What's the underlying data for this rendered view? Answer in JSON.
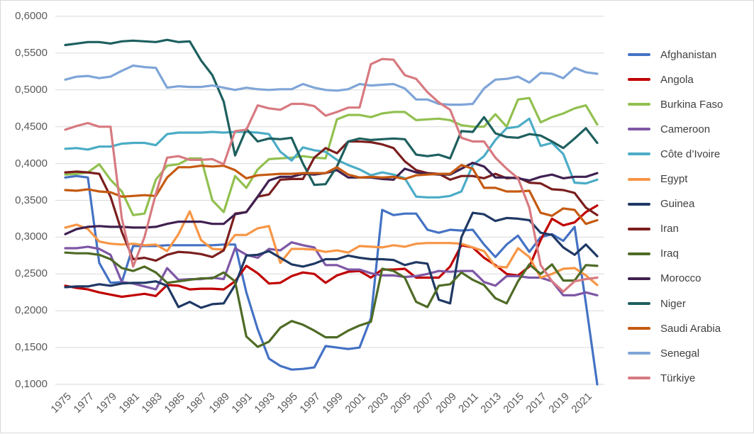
{
  "chart_data": {
    "type": "line",
    "title": "",
    "xlabel": "",
    "ylabel": "",
    "ylim": [
      0.1,
      0.6
    ],
    "yticks": [
      "0,6000",
      "0,5500",
      "0,5000",
      "0,4500",
      "0,4000",
      "0,3500",
      "0,3000",
      "0,2500",
      "0,2000",
      "0,1500",
      "0,1000"
    ],
    "xtick_labels": [
      "1975",
      "1977",
      "1979",
      "1981",
      "1983",
      "1985",
      "1987",
      "1989",
      "1991",
      "1993",
      "1995",
      "1997",
      "1999",
      "2001",
      "2003",
      "2005",
      "2007",
      "2009",
      "2011",
      "2013",
      "2015",
      "2017",
      "2019",
      "2021"
    ],
    "x": [
      1975,
      1976,
      1977,
      1978,
      1979,
      1980,
      1981,
      1982,
      1983,
      1984,
      1985,
      1986,
      1987,
      1988,
      1989,
      1990,
      1991,
      1992,
      1993,
      1994,
      1995,
      1996,
      1997,
      1998,
      1999,
      2000,
      2001,
      2002,
      2003,
      2004,
      2005,
      2006,
      2007,
      2008,
      2009,
      2010,
      2011,
      2012,
      2013,
      2014,
      2015,
      2016,
      2017,
      2018,
      2019,
      2020,
      2021,
      2022
    ],
    "grid": "horizontal",
    "legend_position": "right",
    "series": [
      {
        "name": "Afghanistan",
        "color": "#4472C4",
        "values": [
          0.381,
          0.383,
          0.381,
          0.265,
          0.238,
          0.239,
          0.288,
          0.288,
          0.288,
          0.289,
          0.289,
          0.289,
          0.289,
          0.289,
          0.29,
          0.29,
          0.225,
          0.175,
          0.135,
          0.125,
          0.12,
          0.121,
          0.123,
          0.152,
          0.15,
          0.148,
          0.15,
          0.19,
          0.337,
          0.33,
          0.332,
          0.332,
          0.31,
          0.306,
          0.31,
          0.309,
          0.31,
          0.29,
          0.273,
          0.29,
          0.302,
          0.28,
          0.3,
          0.304,
          0.295,
          0.314,
          0.21,
          0.1
        ]
      },
      {
        "name": "Angola",
        "color": "#C00000",
        "values": [
          0.234,
          0.231,
          0.229,
          0.225,
          0.222,
          0.219,
          0.221,
          0.223,
          0.22,
          0.235,
          0.234,
          0.229,
          0.23,
          0.23,
          0.229,
          0.24,
          0.261,
          0.251,
          0.237,
          0.238,
          0.247,
          0.252,
          0.25,
          0.238,
          0.248,
          0.253,
          0.254,
          0.245,
          0.256,
          0.256,
          0.257,
          0.245,
          0.245,
          0.245,
          0.26,
          0.289,
          0.286,
          0.272,
          0.262,
          0.25,
          0.248,
          0.26,
          0.296,
          0.325,
          0.316,
          0.32,
          0.334,
          0.343
        ]
      },
      {
        "name": "Burkina Faso",
        "color": "#92C050",
        "values": [
          0.385,
          0.386,
          0.388,
          0.399,
          0.378,
          0.362,
          0.33,
          0.332,
          0.378,
          0.397,
          0.399,
          0.407,
          0.407,
          0.35,
          0.334,
          0.383,
          0.367,
          0.392,
          0.406,
          0.407,
          0.408,
          0.41,
          0.408,
          0.407,
          0.46,
          0.466,
          0.466,
          0.463,
          0.468,
          0.47,
          0.47,
          0.459,
          0.46,
          0.461,
          0.459,
          0.452,
          0.45,
          0.45,
          0.467,
          0.45,
          0.487,
          0.489,
          0.456,
          0.463,
          0.468,
          0.475,
          0.479,
          0.453
        ]
      },
      {
        "name": "Cameroon",
        "color": "#7E57A5",
        "values": [
          0.285,
          0.285,
          0.287,
          0.284,
          0.276,
          0.239,
          0.237,
          0.233,
          0.229,
          0.258,
          0.242,
          0.243,
          0.243,
          0.245,
          0.243,
          0.285,
          0.276,
          0.272,
          0.284,
          0.282,
          0.293,
          0.289,
          0.286,
          0.262,
          0.262,
          0.256,
          0.256,
          0.251,
          0.248,
          0.248,
          0.246,
          0.247,
          0.25,
          0.254,
          0.253,
          0.254,
          0.254,
          0.239,
          0.234,
          0.247,
          0.247,
          0.245,
          0.245,
          0.24,
          0.221,
          0.221,
          0.225,
          0.221
        ]
      },
      {
        "name": "Côte d’Ivoire",
        "color": "#4BACC6",
        "values": [
          0.42,
          0.421,
          0.419,
          0.423,
          0.423,
          0.427,
          0.428,
          0.428,
          0.425,
          0.44,
          0.442,
          0.442,
          0.442,
          0.443,
          0.442,
          0.443,
          0.443,
          0.442,
          0.44,
          0.416,
          0.404,
          0.422,
          0.418,
          0.416,
          0.405,
          0.398,
          0.392,
          0.384,
          0.388,
          0.385,
          0.38,
          0.355,
          0.354,
          0.354,
          0.356,
          0.362,
          0.398,
          0.41,
          0.432,
          0.448,
          0.45,
          0.461,
          0.424,
          0.428,
          0.413,
          0.374,
          0.373,
          0.378
        ]
      },
      {
        "name": "Egypt",
        "color": "#F79646",
        "values": [
          0.313,
          0.317,
          0.311,
          0.294,
          0.291,
          0.29,
          0.291,
          0.289,
          0.29,
          0.281,
          0.304,
          0.335,
          0.296,
          0.284,
          0.283,
          0.303,
          0.303,
          0.312,
          0.315,
          0.265,
          0.284,
          0.284,
          0.283,
          0.28,
          0.282,
          0.279,
          0.288,
          0.287,
          0.286,
          0.289,
          0.287,
          0.291,
          0.292,
          0.292,
          0.292,
          0.291,
          0.286,
          0.281,
          0.26,
          0.259,
          0.285,
          0.273,
          0.245,
          0.25,
          0.257,
          0.258,
          0.248,
          0.235
        ]
      },
      {
        "name": "Guinea",
        "color": "#1F3864",
        "values": [
          0.232,
          0.233,
          0.233,
          0.236,
          0.234,
          0.237,
          0.238,
          0.238,
          0.24,
          0.234,
          0.205,
          0.212,
          0.204,
          0.209,
          0.21,
          0.235,
          0.275,
          0.276,
          0.281,
          0.272,
          0.263,
          0.26,
          0.264,
          0.27,
          0.27,
          0.275,
          0.272,
          0.27,
          0.27,
          0.269,
          0.262,
          0.266,
          0.264,
          0.215,
          0.21,
          0.3,
          0.333,
          0.331,
          0.322,
          0.326,
          0.325,
          0.323,
          0.306,
          0.303,
          0.286,
          0.276,
          0.29,
          0.274
        ]
      },
      {
        "name": "Iran",
        "color": "#7B1E1E",
        "values": [
          0.388,
          0.389,
          0.388,
          0.386,
          0.355,
          0.307,
          0.27,
          0.272,
          0.268,
          0.276,
          0.28,
          0.279,
          0.277,
          0.273,
          0.282,
          0.332,
          0.334,
          0.355,
          0.358,
          0.378,
          0.379,
          0.379,
          0.408,
          0.421,
          0.414,
          0.43,
          0.43,
          0.429,
          0.426,
          0.421,
          0.403,
          0.391,
          0.387,
          0.386,
          0.378,
          0.383,
          0.383,
          0.38,
          0.386,
          0.38,
          0.381,
          0.374,
          0.373,
          0.365,
          0.364,
          0.36,
          0.34,
          0.33
        ]
      },
      {
        "name": "Iraq",
        "color": "#4E6B25",
        "values": [
          0.279,
          0.278,
          0.278,
          0.276,
          0.27,
          0.258,
          0.254,
          0.26,
          0.252,
          0.238,
          0.24,
          0.242,
          0.244,
          0.244,
          0.252,
          0.24,
          0.165,
          0.151,
          0.158,
          0.177,
          0.186,
          0.181,
          0.173,
          0.164,
          0.164,
          0.173,
          0.18,
          0.185,
          0.257,
          0.254,
          0.245,
          0.212,
          0.205,
          0.234,
          0.236,
          0.252,
          0.242,
          0.235,
          0.217,
          0.21,
          0.24,
          0.263,
          0.25,
          0.263,
          0.241,
          0.241,
          0.262,
          0.261
        ]
      },
      {
        "name": "Morocco",
        "color": "#402050",
        "values": [
          0.304,
          0.311,
          0.314,
          0.315,
          0.314,
          0.314,
          0.313,
          0.313,
          0.314,
          0.318,
          0.321,
          0.321,
          0.321,
          0.318,
          0.318,
          0.331,
          0.334,
          0.355,
          0.377,
          0.382,
          0.382,
          0.386,
          0.385,
          0.387,
          0.391,
          0.381,
          0.381,
          0.381,
          0.379,
          0.378,
          0.393,
          0.388,
          0.386,
          0.385,
          0.385,
          0.393,
          0.401,
          0.396,
          0.381,
          0.381,
          0.38,
          0.377,
          0.382,
          0.385,
          0.38,
          0.382,
          0.382,
          0.387
        ]
      },
      {
        "name": "Niger",
        "color": "#1E5F5F",
        "values": [
          0.561,
          0.563,
          0.565,
          0.565,
          0.563,
          0.566,
          0.567,
          0.566,
          0.565,
          0.568,
          0.565,
          0.566,
          0.54,
          0.52,
          0.484,
          0.411,
          0.447,
          0.43,
          0.434,
          0.433,
          0.435,
          0.4,
          0.371,
          0.372,
          0.396,
          0.43,
          0.434,
          0.432,
          0.433,
          0.434,
          0.433,
          0.412,
          0.41,
          0.412,
          0.407,
          0.444,
          0.443,
          0.463,
          0.441,
          0.436,
          0.435,
          0.44,
          0.438,
          0.43,
          0.421,
          0.434,
          0.448,
          0.428
        ]
      },
      {
        "name": "Saudi Arabia",
        "color": "#C55A11",
        "values": [
          0.364,
          0.363,
          0.365,
          0.362,
          0.361,
          0.355,
          0.356,
          0.357,
          0.356,
          0.381,
          0.395,
          0.395,
          0.397,
          0.396,
          0.397,
          0.391,
          0.38,
          0.384,
          0.385,
          0.386,
          0.386,
          0.387,
          0.387,
          0.387,
          0.395,
          0.385,
          0.381,
          0.382,
          0.381,
          0.382,
          0.379,
          0.384,
          0.385,
          0.386,
          0.386,
          0.398,
          0.393,
          0.367,
          0.367,
          0.362,
          0.362,
          0.363,
          0.333,
          0.329,
          0.339,
          0.337,
          0.318,
          0.323
        ]
      },
      {
        "name": "Senegal",
        "color": "#7FA5D8",
        "values": [
          0.514,
          0.518,
          0.519,
          0.516,
          0.518,
          0.526,
          0.533,
          0.531,
          0.53,
          0.503,
          0.505,
          0.504,
          0.504,
          0.506,
          0.503,
          0.5,
          0.503,
          0.501,
          0.5,
          0.501,
          0.501,
          0.508,
          0.503,
          0.5,
          0.499,
          0.501,
          0.508,
          0.506,
          0.507,
          0.508,
          0.502,
          0.487,
          0.487,
          0.481,
          0.48,
          0.48,
          0.481,
          0.502,
          0.514,
          0.515,
          0.518,
          0.51,
          0.523,
          0.522,
          0.516,
          0.53,
          0.524,
          0.522
        ]
      },
      {
        "name": "Türkiye",
        "color": "#D77A80",
        "values": [
          0.446,
          0.451,
          0.455,
          0.45,
          0.45,
          0.325,
          0.26,
          0.3,
          0.359,
          0.408,
          0.41,
          0.405,
          0.405,
          0.406,
          0.399,
          0.444,
          0.446,
          0.479,
          0.475,
          0.473,
          0.481,
          0.481,
          0.478,
          0.465,
          0.47,
          0.476,
          0.476,
          0.535,
          0.542,
          0.541,
          0.52,
          0.515,
          0.497,
          0.483,
          0.473,
          0.435,
          0.43,
          0.43,
          0.408,
          0.393,
          0.38,
          0.34,
          0.262,
          0.24,
          0.226,
          0.24,
          0.243,
          0.245
        ]
      }
    ]
  }
}
